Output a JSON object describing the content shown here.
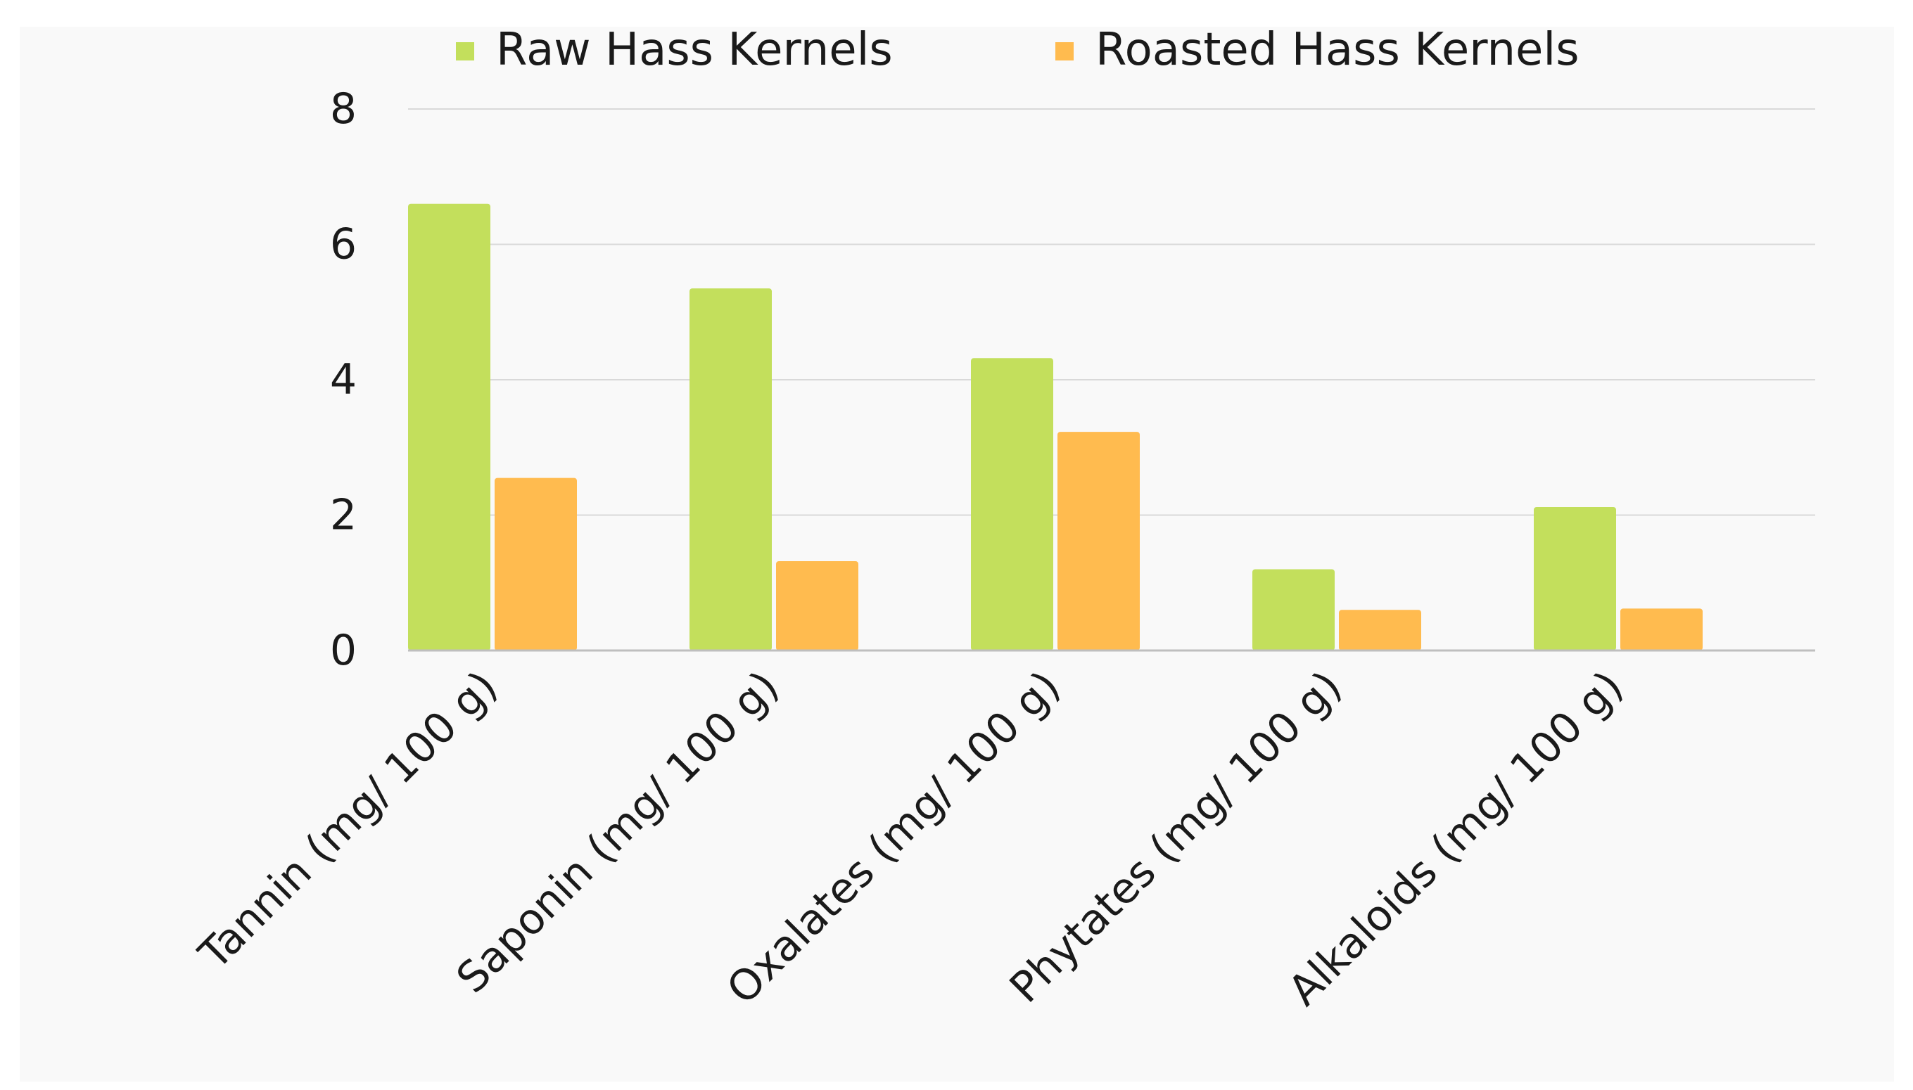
{
  "chart_data": {
    "type": "bar",
    "title": "",
    "xlabel": "",
    "ylabel": "",
    "categories": [
      "Tannin (mg/ 100 g)",
      "Saponin (mg/ 100 g)",
      "Oxalates (mg/ 100 g)",
      "Phytates (mg/ 100 g)",
      "Alkaloids (mg/ 100 g)"
    ],
    "series": [
      {
        "name": "Raw Hass Kernels",
        "color": "#c3df5c",
        "values": [
          6.6,
          5.35,
          4.32,
          1.2,
          2.12
        ]
      },
      {
        "name": "Roasted Hass Kernels",
        "color": "#ffbb4f",
        "values": [
          2.55,
          1.32,
          3.23,
          0.6,
          0.62
        ]
      }
    ],
    "ylim": [
      0,
      8
    ],
    "yticks": [
      "0",
      "2",
      "4",
      "6",
      "8"
    ],
    "grid": true,
    "legend_position": "top"
  }
}
